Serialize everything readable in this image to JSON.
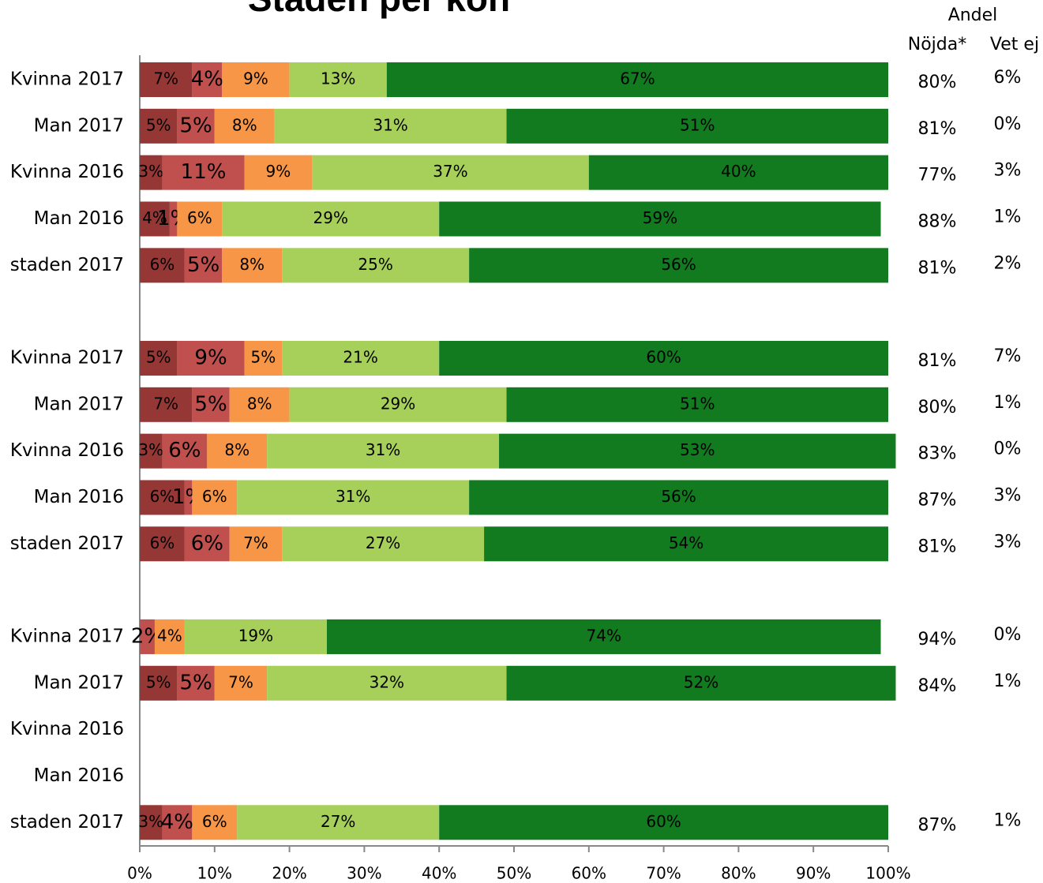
{
  "chart_data": {
    "type": "stacked_bar_horizontal",
    "title": "Staden per kön",
    "categories": [
      "Kvinna 2017",
      "Man 2017",
      "Kvinna 2016",
      "Man 2016",
      "staden 2017",
      null,
      "Kvinna 2017",
      "Man 2017",
      "Kvinna 2016",
      "Man 2016",
      "staden 2017",
      null,
      "Kvinna 2017",
      "Man 2017",
      "Kvinna 2016",
      "Man 2016",
      "staden 2017"
    ],
    "series": [
      {
        "color": "#953735",
        "values": [
          7,
          5,
          3,
          4,
          6,
          null,
          5,
          7,
          3,
          6,
          6,
          null,
          null,
          5,
          null,
          null,
          3
        ],
        "value_labels": [
          "7%",
          "5%",
          "3%",
          "4%",
          "6%",
          null,
          "5%",
          "7%",
          "3%",
          "6%",
          "6%",
          null,
          null,
          "5%",
          null,
          null,
          "3%"
        ]
      },
      {
        "color": "#c0504d",
        "values": [
          4,
          5,
          11,
          1,
          5,
          null,
          9,
          5,
          6,
          1,
          6,
          null,
          2,
          5,
          null,
          null,
          4
        ],
        "value_labels": [
          "4%",
          "5%",
          "11%",
          "1%",
          "5%",
          null,
          "9%",
          "5%",
          "6%",
          "1%",
          "6%",
          null,
          "2%",
          "5%",
          null,
          null,
          "4%"
        ]
      },
      {
        "color": "#f79646",
        "values": [
          9,
          8,
          9,
          6,
          8,
          null,
          5,
          8,
          8,
          6,
          7,
          null,
          4,
          7,
          null,
          null,
          6
        ],
        "value_labels": [
          "9%",
          "8%",
          "9%",
          "6%",
          "8%",
          null,
          "5%",
          "8%",
          "8%",
          "6%",
          "7%",
          null,
          "4%",
          "7%",
          null,
          null,
          "6%"
        ]
      },
      {
        "color": "#a6d05a",
        "values": [
          13,
          31,
          37,
          29,
          25,
          null,
          21,
          29,
          31,
          31,
          27,
          null,
          19,
          32,
          null,
          null,
          27
        ],
        "value_labels": [
          "13%",
          "31%",
          "37%",
          "29%",
          "25%",
          null,
          "21%",
          "29%",
          "31%",
          "31%",
          "27%",
          null,
          "19%",
          "32%",
          null,
          null,
          "27%"
        ]
      },
      {
        "color": "#127a1f",
        "values": [
          67,
          51,
          40,
          59,
          56,
          null,
          60,
          51,
          53,
          56,
          54,
          null,
          74,
          52,
          null,
          null,
          60
        ],
        "value_labels": [
          "67%",
          "51%",
          "40%",
          "59%",
          "56%",
          null,
          "60%",
          "51%",
          "53%",
          "56%",
          "54%",
          null,
          "74%",
          "52%",
          null,
          null,
          "60%"
        ]
      }
    ],
    "xlim": [
      0,
      100
    ],
    "xticks": [
      {
        "value": 0,
        "label": "0%"
      },
      {
        "value": 10,
        "label": "10%"
      },
      {
        "value": 20,
        "label": "20%"
      },
      {
        "value": 30,
        "label": "30%"
      },
      {
        "value": 40,
        "label": "40%"
      },
      {
        "value": 50,
        "label": "50%"
      },
      {
        "value": 60,
        "label": "60%"
      },
      {
        "value": 70,
        "label": "70%"
      },
      {
        "value": 80,
        "label": "80%"
      },
      {
        "value": 90,
        "label": "90%"
      },
      {
        "value": 100,
        "label": "100%"
      }
    ],
    "side_header": "Andel",
    "side_columns": [
      {
        "label": "Nöjda*",
        "values": [
          80,
          81,
          77,
          88,
          81,
          null,
          81,
          80,
          83,
          87,
          81,
          null,
          94,
          84,
          null,
          null,
          87
        ],
        "value_labels": [
          "80%",
          "81%",
          "77%",
          "88%",
          "81%",
          null,
          "81%",
          "80%",
          "83%",
          "87%",
          "81%",
          null,
          "94%",
          "84%",
          null,
          null,
          "87%"
        ]
      },
      {
        "label": "Vet ej",
        "values": [
          6,
          0,
          3,
          1,
          2,
          null,
          7,
          1,
          0,
          3,
          3,
          null,
          0,
          1,
          null,
          null,
          1
        ],
        "value_labels": [
          "6%",
          "0%",
          "3%",
          "1%",
          "2%",
          null,
          "7%",
          "1%",
          "0%",
          "3%",
          "3%",
          null,
          "0%",
          "1%",
          null,
          null,
          "1%"
        ]
      }
    ]
  }
}
